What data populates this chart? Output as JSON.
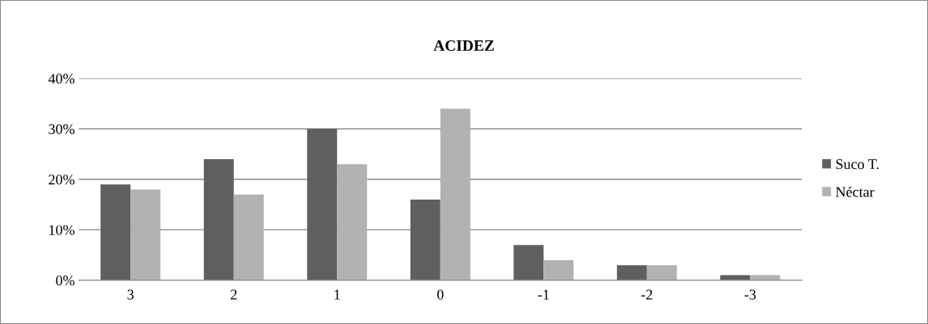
{
  "chart_data": {
    "type": "bar",
    "title": "ACIDEZ",
    "categories": [
      "3",
      "2",
      "1",
      "0",
      "-1",
      "-2",
      "-3"
    ],
    "series": [
      {
        "name": "Suco T.",
        "color": "#5f5f5f",
        "values": [
          19,
          24,
          30,
          16,
          7,
          3,
          1
        ]
      },
      {
        "name": "Néctar",
        "color": "#b2b2b2",
        "values": [
          18,
          17,
          23,
          34,
          4,
          3,
          1
        ]
      }
    ],
    "ylim": [
      0,
      40
    ],
    "yticks": [
      {
        "value": 0,
        "label": "0%"
      },
      {
        "value": 10,
        "label": "10%"
      },
      {
        "value": 20,
        "label": "20%"
      },
      {
        "value": 30,
        "label": "30%"
      },
      {
        "value": 40,
        "label": "40%"
      }
    ],
    "grid": "y",
    "legend": "right"
  }
}
